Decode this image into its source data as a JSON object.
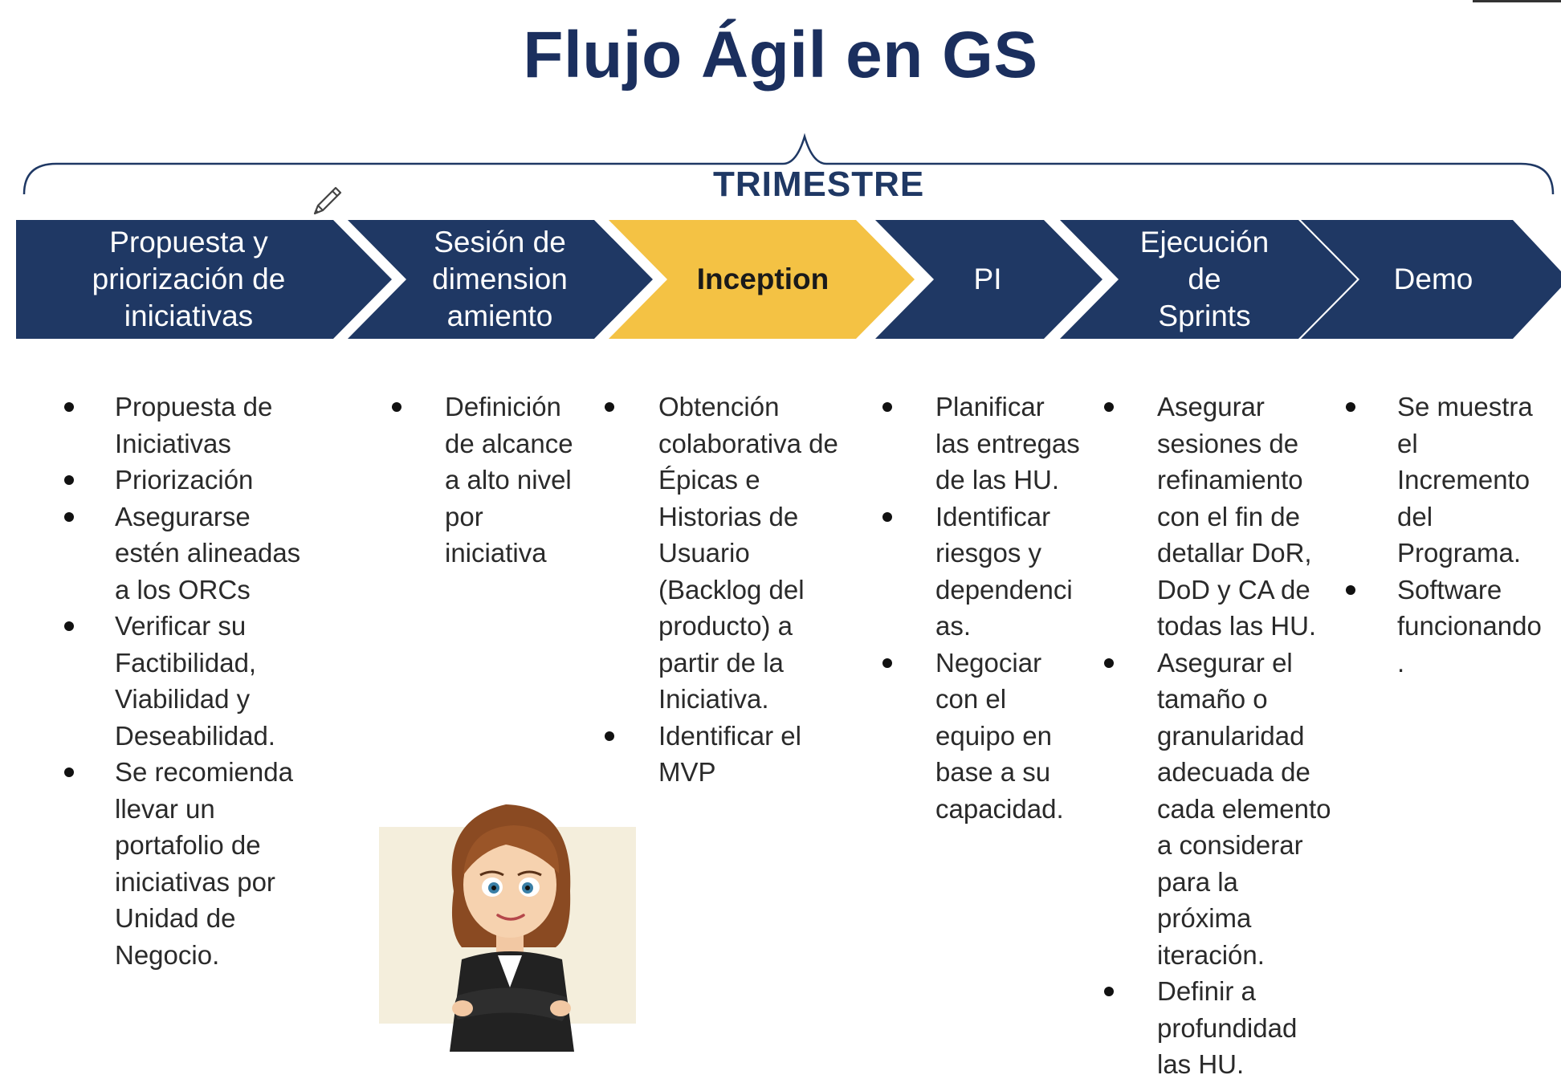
{
  "title": "Flujo Ágil en GS",
  "brace_label": "TRIMESTRE",
  "colors": {
    "navy": "#1f3864",
    "active": "#f4c244",
    "title": "#1b2f5e"
  },
  "steps": [
    {
      "label": "Propuesta y\npriorización de\niniciativas",
      "active": false
    },
    {
      "label": "Sesión de\ndimension\namiento",
      "active": false
    },
    {
      "label": "Inception",
      "active": true
    },
    {
      "label": "PI",
      "active": false
    },
    {
      "label": "Ejecución\nde\nSprints",
      "active": false
    },
    {
      "label": "Demo",
      "active": false
    }
  ],
  "columns": [
    {
      "bullets": [
        "Propuesta de\nIniciativas",
        "Priorización",
        "Asegurarse\nestén alineadas\na los ORCs",
        "Verificar su\nFactibilidad,\nViabilidad y\nDeseabilidad.",
        "Se recomienda\nllevar un\nportafolio de\niniciativas por\nUnidad de\nNegocio."
      ]
    },
    {
      "bullets": [
        "Definición\nde alcance\na alto nivel\npor\niniciativa"
      ]
    },
    {
      "bullets": [
        "Obtención\ncolaborativa de\nÉpicas e\nHistorias de\nUsuario\n(Backlog del\nproducto) a\npartir de la\nIniciativa.",
        "Identificar el\nMVP"
      ]
    },
    {
      "bullets": [
        "Planificar\nlas entregas\nde las HU.",
        "Identificar\nriesgos y\ndependenci\nas.",
        "Negociar\ncon el\nequipo en\nbase a su\ncapacidad."
      ]
    },
    {
      "bullets": [
        "Asegurar\nsesiones de\nrefinamiento\ncon el fin de\ndetallar DoR,\nDoD y CA de\ntodas las HU.",
        "Asegurar el\ntamaño o\ngranularidad\nadecuada de\ncada elemento\na considerar\npara la\npróxima\niteración.",
        "Definir a\nprofundidad\nlas HU."
      ]
    },
    {
      "bullets": [
        "Se muestra\nel\nIncremento\ndel\nPrograma.",
        "Software\nfuncionando\n."
      ]
    }
  ]
}
